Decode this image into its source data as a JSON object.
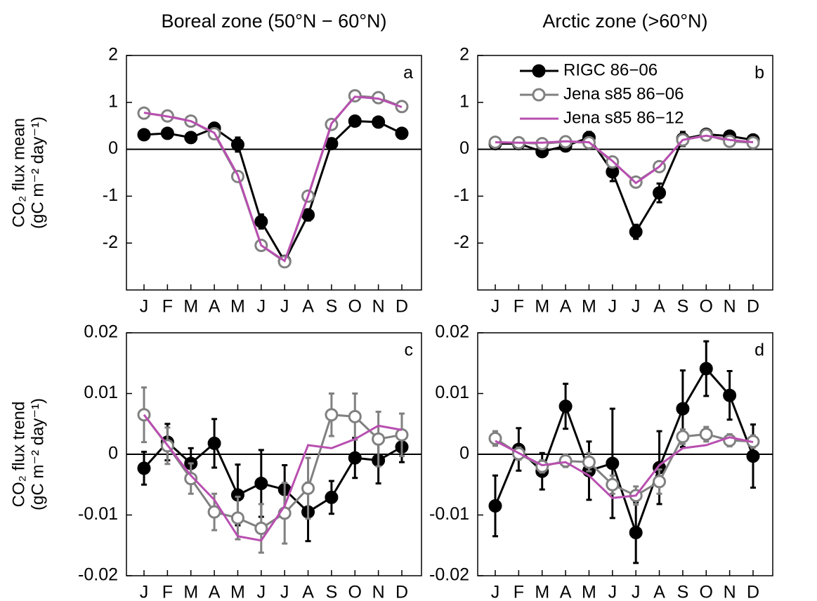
{
  "chart_data": [
    {
      "type": "line",
      "title": "Boreal zone (50°N − 60°N)",
      "ylabel": [
        "CO₂ flux mean",
        "(gC m⁻² day⁻¹)"
      ],
      "label": "a",
      "categories": [
        "J",
        "F",
        "M",
        "A",
        "M",
        "J",
        "J",
        "A",
        "S",
        "O",
        "N",
        "D"
      ],
      "ylim": [
        -3,
        2
      ],
      "yticks": [
        -2,
        -1,
        0,
        1,
        2
      ],
      "series": [
        {
          "color": "#000000",
          "marker": "filled",
          "values": [
            0.31,
            0.34,
            0.25,
            0.45,
            0.1,
            -1.54,
            -2.39,
            -1.4,
            0.12,
            0.6,
            0.58,
            0.34
          ],
          "errors": [
            0.05,
            0.05,
            0.05,
            0.1,
            0.15,
            0.15,
            0.1,
            0.12,
            0.06,
            0.06,
            0.06,
            0.05
          ]
        },
        {
          "color": "#808080",
          "marker": "open",
          "values": [
            0.77,
            0.71,
            0.6,
            0.33,
            -0.58,
            -2.05,
            -2.4,
            -1.0,
            0.53,
            1.14,
            1.1,
            0.91
          ],
          "errors": [
            0.06,
            0.05,
            0.05,
            0.05,
            0.06,
            0.07,
            0.08,
            0.06,
            0.05,
            0.06,
            0.06,
            0.05
          ]
        },
        {
          "color": "#b84fb0",
          "marker": "none",
          "values": [
            0.78,
            0.7,
            0.6,
            0.35,
            -0.55,
            -2.05,
            -2.38,
            -1.0,
            0.55,
            1.12,
            1.08,
            0.9
          ]
        }
      ]
    },
    {
      "type": "line",
      "title": "Arctic zone (>60°N)",
      "label": "b",
      "categories": [
        "J",
        "F",
        "M",
        "A",
        "M",
        "J",
        "J",
        "A",
        "S",
        "O",
        "N",
        "D"
      ],
      "ylim": [
        -3,
        2
      ],
      "yticks": [
        -2,
        -1,
        0,
        1,
        2
      ],
      "legend": "upper left",
      "series": [
        {
          "name": "RIGC 86−06",
          "color": "#000000",
          "marker": "filled",
          "values": [
            0.12,
            0.12,
            -0.05,
            0.07,
            0.25,
            -0.48,
            -1.76,
            -0.93,
            0.22,
            0.32,
            0.28,
            0.2
          ],
          "errors": [
            0.1,
            0.06,
            0.06,
            0.08,
            0.12,
            0.2,
            0.15,
            0.2,
            0.15,
            0.1,
            0.1,
            0.1
          ]
        },
        {
          "name": "Jena s85 86−06",
          "color": "#808080",
          "marker": "open",
          "values": [
            0.15,
            0.14,
            0.12,
            0.16,
            0.14,
            -0.27,
            -0.7,
            -0.37,
            0.2,
            0.3,
            0.17,
            0.14
          ],
          "errors": [
            0.05,
            0.04,
            0.04,
            0.04,
            0.04,
            0.05,
            0.06,
            0.05,
            0.05,
            0.05,
            0.04,
            0.04
          ]
        },
        {
          "name": "Jena s85 86−12",
          "color": "#b84fb0",
          "marker": "none",
          "values": [
            0.15,
            0.14,
            0.14,
            0.17,
            0.15,
            -0.25,
            -0.72,
            -0.37,
            0.2,
            0.29,
            0.2,
            0.15
          ]
        }
      ]
    },
    {
      "type": "line",
      "ylabel": [
        "CO₂ flux trend",
        "(gC m⁻² day⁻¹)"
      ],
      "label": "c",
      "categories": [
        "J",
        "F",
        "M",
        "A",
        "M",
        "J",
        "J",
        "A",
        "S",
        "O",
        "N",
        "D"
      ],
      "ylim": [
        -0.02,
        0.02
      ],
      "yticks": [
        -0.02,
        -0.01,
        0,
        0.01,
        0.02
      ],
      "series": [
        {
          "color": "#000000",
          "marker": "filled",
          "values": [
            -0.0023,
            0.002,
            -0.0015,
            0.0018,
            -0.0067,
            -0.0048,
            -0.0058,
            -0.0095,
            -0.0071,
            -0.0006,
            -0.001,
            0.0012
          ],
          "errors": [
            0.0027,
            0.003,
            0.0025,
            0.004,
            0.005,
            0.0055,
            0.004,
            0.0048,
            0.0027,
            0.0033,
            0.0038,
            0.0025
          ]
        },
        {
          "color": "#808080",
          "marker": "open",
          "values": [
            0.0065,
            0.0014,
            -0.004,
            -0.0095,
            -0.0105,
            -0.0122,
            -0.0097,
            -0.0056,
            0.0065,
            0.0062,
            0.0025,
            0.0032
          ],
          "errors": [
            0.0045,
            0.003,
            0.0025,
            0.003,
            0.0035,
            0.004,
            0.005,
            0.005,
            0.0035,
            0.0038,
            0.0045,
            0.0035
          ]
        },
        {
          "color": "#b84fb0",
          "marker": "none",
          "values": [
            0.0065,
            0.0015,
            -0.0035,
            -0.0075,
            -0.0135,
            -0.0142,
            -0.0085,
            0.0015,
            0.001,
            0.0025,
            0.0047,
            0.004
          ]
        }
      ]
    },
    {
      "type": "line",
      "label": "d",
      "categories": [
        "J",
        "F",
        "M",
        "A",
        "M",
        "J",
        "J",
        "A",
        "S",
        "O",
        "N",
        "D"
      ],
      "ylim": [
        -0.02,
        0.02
      ],
      "yticks": [
        -0.02,
        -0.01,
        0,
        0.01,
        0.02
      ],
      "series": [
        {
          "color": "#000000",
          "marker": "filled",
          "values": [
            -0.0085,
            0.0008,
            -0.0028,
            0.0079,
            -0.0027,
            -0.0015,
            -0.0129,
            -0.0022,
            0.0075,
            0.0141,
            0.0097,
            -0.0003
          ],
          "errors": [
            0.005,
            0.0035,
            0.003,
            0.0037,
            0.0048,
            0.009,
            0.005,
            0.006,
            0.0063,
            0.0045,
            0.004,
            0.0052
          ]
        },
        {
          "color": "#808080",
          "marker": "open",
          "values": [
            0.0026,
            0.0001,
            -0.002,
            -0.0011,
            -0.0013,
            -0.005,
            -0.0068,
            -0.0045,
            0.0029,
            0.0033,
            0.0023,
            0.0021
          ],
          "errors": [
            0.0012,
            0.001,
            0.001,
            0.001,
            0.0015,
            0.0015,
            0.0015,
            0.002,
            0.0012,
            0.0012,
            0.001,
            0.001
          ]
        },
        {
          "color": "#b84fb0",
          "marker": "none",
          "values": [
            0.0022,
            0.0002,
            -0.0018,
            -0.0013,
            -0.0035,
            -0.0072,
            -0.0068,
            -0.0018,
            0.001,
            0.0015,
            0.0028,
            0.002
          ]
        }
      ]
    }
  ]
}
